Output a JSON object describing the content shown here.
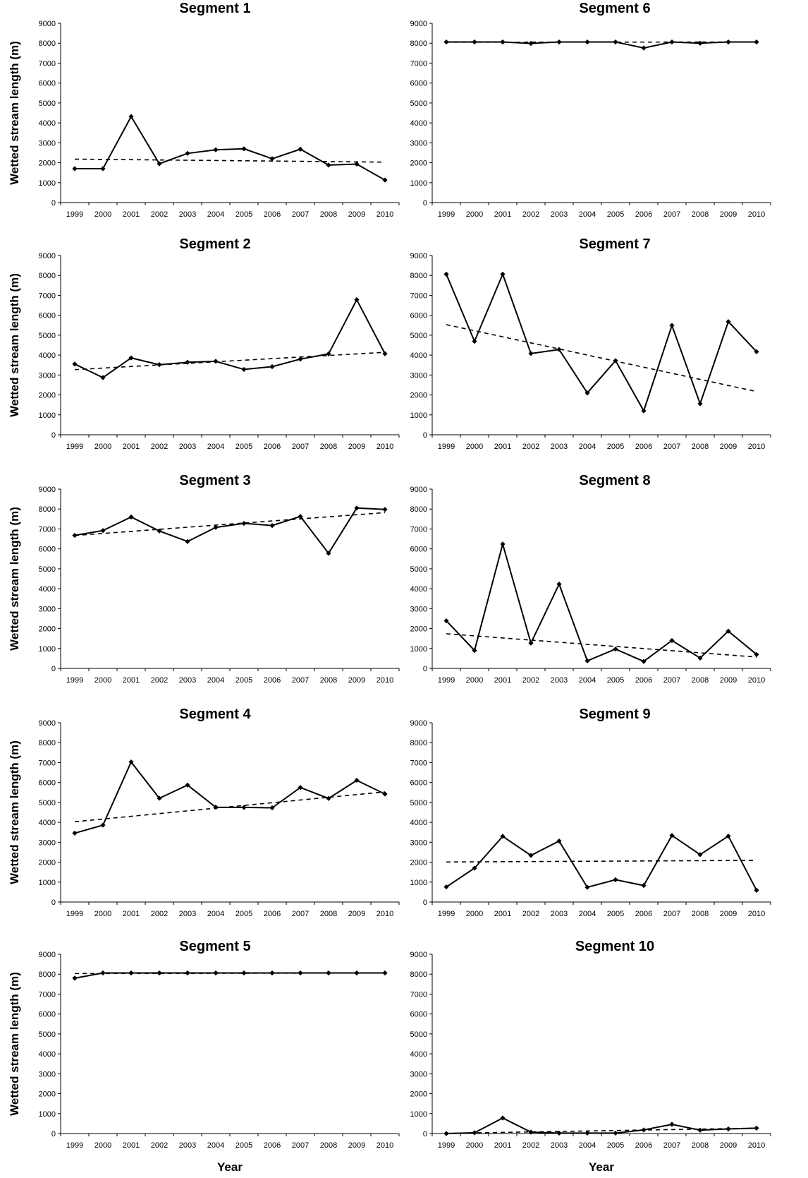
{
  "figure": {
    "ylabel": "Wetted stream length (m)",
    "xlabel": "Year"
  },
  "chart_data": [
    {
      "type": "line",
      "title": "Segment 1",
      "ylabel": "Wetted stream length (m)",
      "xlabel": "",
      "categories": [
        "1999",
        "2000",
        "2001",
        "2002",
        "2003",
        "2004",
        "2005",
        "2006",
        "2007",
        "2008",
        "2009",
        "2010"
      ],
      "yticks": [
        0,
        1000,
        2000,
        3000,
        4000,
        5000,
        6000,
        7000,
        8000,
        9000
      ],
      "ylim": [
        0,
        9000
      ],
      "values": [
        1700,
        1700,
        4320,
        1950,
        2470,
        2650,
        2700,
        2200,
        2680,
        1880,
        1930,
        1130
      ],
      "trendline": [
        2180,
        2030
      ],
      "grid": false,
      "legend": "none"
    },
    {
      "type": "line",
      "title": "Segment 2",
      "ylabel": "Wetted stream length (m)",
      "xlabel": "",
      "categories": [
        "1999",
        "2000",
        "2001",
        "2002",
        "2003",
        "2004",
        "2005",
        "2006",
        "2007",
        "2008",
        "2009",
        "2010"
      ],
      "yticks": [
        0,
        1000,
        2000,
        3000,
        4000,
        5000,
        6000,
        7000,
        8000,
        9000
      ],
      "ylim": [
        0,
        9000
      ],
      "values": [
        3550,
        2870,
        3860,
        3520,
        3640,
        3690,
        3280,
        3420,
        3800,
        4060,
        6780,
        4070
      ],
      "trendline": [
        3270,
        4140
      ],
      "grid": false,
      "legend": "none"
    },
    {
      "type": "line",
      "title": "Segment 3",
      "ylabel": "Wetted stream length (m)",
      "xlabel": "",
      "categories": [
        "1999",
        "2000",
        "2001",
        "2002",
        "2003",
        "2004",
        "2005",
        "2006",
        "2007",
        "2008",
        "2009",
        "2010"
      ],
      "yticks": [
        0,
        1000,
        2000,
        3000,
        4000,
        5000,
        6000,
        7000,
        8000,
        9000
      ],
      "ylim": [
        0,
        9000
      ],
      "values": [
        6680,
        6920,
        7600,
        6900,
        6370,
        7080,
        7280,
        7170,
        7630,
        5780,
        8050,
        7980
      ],
      "trendline": [
        6670,
        7820
      ],
      "grid": false,
      "legend": "none"
    },
    {
      "type": "line",
      "title": "Segment 4",
      "ylabel": "Wetted stream length (m)",
      "xlabel": "",
      "categories": [
        "1999",
        "2000",
        "2001",
        "2002",
        "2003",
        "2004",
        "2005",
        "2006",
        "2007",
        "2008",
        "2009",
        "2010"
      ],
      "yticks": [
        0,
        1000,
        2000,
        3000,
        4000,
        5000,
        6000,
        7000,
        8000,
        9000
      ],
      "ylim": [
        0,
        9000
      ],
      "values": [
        3460,
        3860,
        7030,
        5210,
        5870,
        4760,
        4750,
        4730,
        5750,
        5200,
        6110,
        5420
      ],
      "trendline": [
        4030,
        5530
      ],
      "grid": false,
      "legend": "none"
    },
    {
      "type": "line",
      "title": "Segment 5",
      "ylabel": "Wetted stream length (m)",
      "xlabel": "Year",
      "categories": [
        "1999",
        "2000",
        "2001",
        "2002",
        "2003",
        "2004",
        "2005",
        "2006",
        "2007",
        "2008",
        "2009",
        "2010"
      ],
      "yticks": [
        0,
        1000,
        2000,
        3000,
        4000,
        5000,
        6000,
        7000,
        8000,
        9000
      ],
      "ylim": [
        0,
        9000
      ],
      "values": [
        7800,
        8060,
        8060,
        8060,
        8060,
        8060,
        8060,
        8060,
        8060,
        8060,
        8060,
        8060
      ],
      "trendline": [
        8030,
        8060
      ],
      "grid": false,
      "legend": "none"
    },
    {
      "type": "line",
      "title": "Segment 6",
      "ylabel": "",
      "xlabel": "",
      "categories": [
        "1999",
        "2000",
        "2001",
        "2002",
        "2003",
        "2004",
        "2005",
        "2006",
        "2007",
        "2008",
        "2009",
        "2010"
      ],
      "yticks": [
        0,
        1000,
        2000,
        3000,
        4000,
        5000,
        6000,
        7000,
        8000,
        9000
      ],
      "ylim": [
        0,
        9000
      ],
      "values": [
        8060,
        8060,
        8060,
        7990,
        8060,
        8060,
        8060,
        7760,
        8060,
        8000,
        8060,
        8060
      ],
      "trendline": [
        8050,
        8060
      ],
      "grid": false,
      "legend": "none"
    },
    {
      "type": "line",
      "title": "Segment 7",
      "ylabel": "",
      "xlabel": "",
      "categories": [
        "1999",
        "2000",
        "2001",
        "2002",
        "2003",
        "2004",
        "2005",
        "2006",
        "2007",
        "2008",
        "2009",
        "2010"
      ],
      "yticks": [
        0,
        1000,
        2000,
        3000,
        4000,
        5000,
        6000,
        7000,
        8000,
        9000
      ],
      "ylim": [
        0,
        9000
      ],
      "values": [
        8060,
        4690,
        8060,
        4080,
        4280,
        2100,
        3720,
        1200,
        5490,
        1560,
        5680,
        4170
      ],
      "trendline": [
        5530,
        2170
      ],
      "grid": false,
      "legend": "none"
    },
    {
      "type": "line",
      "title": "Segment 8",
      "ylabel": "",
      "xlabel": "",
      "categories": [
        "1999",
        "2000",
        "2001",
        "2002",
        "2003",
        "2004",
        "2005",
        "2006",
        "2007",
        "2008",
        "2009",
        "2010"
      ],
      "yticks": [
        0,
        1000,
        2000,
        3000,
        4000,
        5000,
        6000,
        7000,
        8000,
        9000
      ],
      "ylim": [
        0,
        9000
      ],
      "values": [
        2390,
        900,
        6240,
        1270,
        4230,
        380,
        970,
        350,
        1400,
        520,
        1870,
        700
      ],
      "trendline": [
        1740,
        570
      ],
      "grid": false,
      "legend": "none"
    },
    {
      "type": "line",
      "title": "Segment 9",
      "ylabel": "",
      "xlabel": "",
      "categories": [
        "1999",
        "2000",
        "2001",
        "2002",
        "2003",
        "2004",
        "2005",
        "2006",
        "2007",
        "2008",
        "2009",
        "2010"
      ],
      "yticks": [
        0,
        1000,
        2000,
        3000,
        4000,
        5000,
        6000,
        7000,
        8000,
        9000
      ],
      "ylim": [
        0,
        9000
      ],
      "values": [
        760,
        1700,
        3300,
        2340,
        3060,
        740,
        1120,
        830,
        3340,
        2380,
        3310,
        590
      ],
      "trendline": [
        2010,
        2090
      ],
      "grid": false,
      "legend": "none"
    },
    {
      "type": "line",
      "title": "Segment 10",
      "ylabel": "",
      "xlabel": "Year",
      "categories": [
        "1999",
        "2000",
        "2001",
        "2002",
        "2003",
        "2004",
        "2005",
        "2006",
        "2007",
        "2008",
        "2009",
        "2010"
      ],
      "yticks": [
        0,
        1000,
        2000,
        3000,
        4000,
        5000,
        6000,
        7000,
        8000,
        9000
      ],
      "ylim": [
        0,
        9000
      ],
      "values": [
        0,
        40,
        780,
        70,
        20,
        20,
        20,
        180,
        460,
        170,
        230,
        270
      ],
      "trendline": [
        10,
        270
      ],
      "grid": false,
      "legend": "none"
    }
  ]
}
